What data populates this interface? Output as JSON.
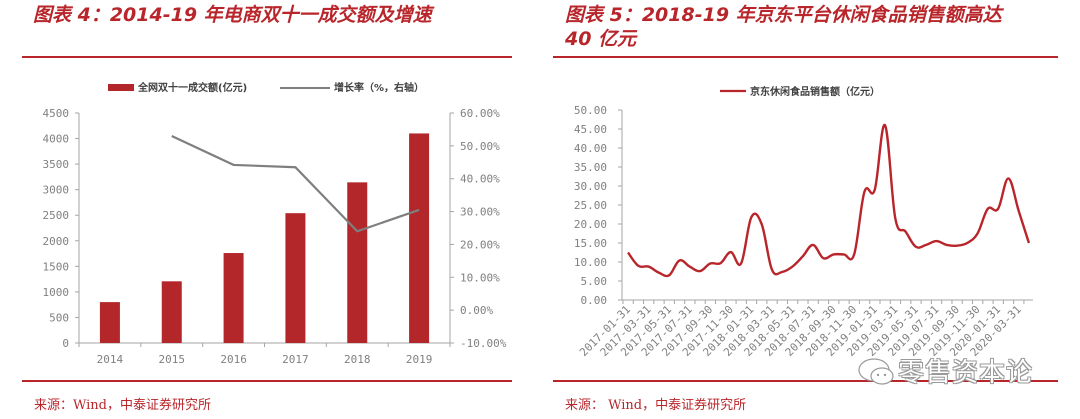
{
  "left_panel": {
    "title": "图表 4：2014-19 年电商双十一成交额及增速",
    "source": "来源：Wind，中泰证券研究所"
  },
  "right_panel": {
    "title_line1": "图表 5：2018-19 年京东平台休闲食品销售额高达",
    "title_line2": "40 亿元",
    "source": "来源：  Wind，中泰证券研究所"
  },
  "watermark": {
    "icon": "wechat-icon",
    "text": "零售资本论"
  },
  "colors": {
    "accent": "#b8262b",
    "bar": "#b3272a",
    "line_gray": "#7f7f7f",
    "line_red": "#b8262b",
    "axis": "#a6a6a6"
  },
  "chart_data": [
    {
      "type": "bar+line",
      "title": "图表 4：2014-19 年电商双十一成交额及增速",
      "categories": [
        "2014",
        "2015",
        "2016",
        "2017",
        "2018",
        "2019"
      ],
      "series": [
        {
          "name": "全网双十一成交额(亿元)",
          "type": "bar",
          "axis": "left",
          "values": [
            800,
            1207,
            1760,
            2540,
            3143,
            4100
          ]
        },
        {
          "name": "增长率（%，右轴）",
          "type": "line",
          "axis": "right",
          "values": [
            null,
            53.0,
            44.2,
            43.5,
            24.0,
            30.5
          ]
        }
      ],
      "yleft": {
        "min": 0,
        "max": 4500,
        "step": 500,
        "ticks": [
          "0",
          "500",
          "1000",
          "1500",
          "2000",
          "2500",
          "3000",
          "3500",
          "4000",
          "4500"
        ]
      },
      "yright": {
        "min": -10,
        "max": 60,
        "step": 10,
        "ticks": [
          "-10.00%",
          "0.00%",
          "10.00%",
          "20.00%",
          "30.00%",
          "40.00%",
          "50.00%",
          "60.00%"
        ]
      },
      "xlabel": "",
      "ylabel": "",
      "legend_position": "top",
      "grid": false
    },
    {
      "type": "line",
      "title": "图表 5：2018-19 年京东平台休闲食品销售额高达 40 亿元",
      "series": [
        {
          "name": "京东休闲食品销售额（亿元）",
          "x": [
            "2017-01",
            "2017-02",
            "2017-03",
            "2017-04",
            "2017-05",
            "2017-06",
            "2017-07",
            "2017-08",
            "2017-09",
            "2017-10",
            "2017-11",
            "2017-12",
            "2018-01",
            "2018-02",
            "2018-03",
            "2018-04",
            "2018-05",
            "2018-06",
            "2018-07",
            "2018-08",
            "2018-09",
            "2018-10",
            "2018-11",
            "2018-12",
            "2019-01",
            "2019-02",
            "2019-03",
            "2019-04",
            "2019-05",
            "2019-06",
            "2019-07",
            "2019-08",
            "2019-09",
            "2019-10",
            "2019-11",
            "2019-12",
            "2020-01",
            "2020-02",
            "2020-03",
            "2020-04"
          ],
          "values": [
            12.5,
            9.0,
            8.8,
            7.2,
            6.5,
            10.4,
            8.8,
            7.6,
            9.6,
            9.7,
            12.6,
            9.6,
            21.8,
            20.0,
            8.0,
            7.4,
            8.8,
            11.5,
            14.5,
            11.0,
            12.0,
            12.0,
            12.0,
            28.5,
            29.0,
            46.0,
            21.5,
            18.0,
            14.0,
            14.5,
            15.5,
            14.5,
            14.3,
            15.0,
            17.5,
            24.0,
            24.0,
            32.0,
            23.5,
            15.0
          ]
        }
      ],
      "x_tick_labels": [
        "2017-01-31",
        "2017-03-31",
        "2017-05-31",
        "2017-07-31",
        "2017-09-30",
        "2017-11-30",
        "2018-01-31",
        "2018-03-31",
        "2018-05-31",
        "2018-07-31",
        "2018-09-30",
        "2018-11-30",
        "2019-01-31",
        "2019-03-31",
        "2019-05-31",
        "2019-07-31",
        "2019-09-30",
        "2019-11-30",
        "2020-01-31",
        "2020-03-31"
      ],
      "y": {
        "min": 0,
        "max": 50,
        "step": 5,
        "ticks": [
          "0.00",
          "5.00",
          "10.00",
          "15.00",
          "20.00",
          "25.00",
          "30.00",
          "35.00",
          "40.00",
          "45.00",
          "50.00"
        ]
      },
      "xlabel": "",
      "ylabel": "",
      "legend_position": "top",
      "grid": false
    }
  ]
}
